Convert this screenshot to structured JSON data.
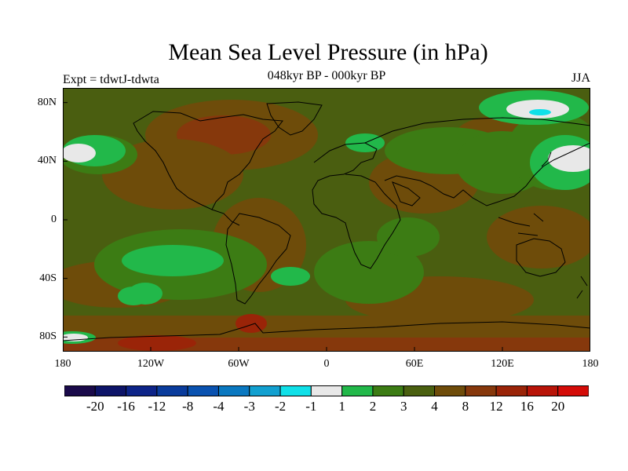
{
  "title": "Mean Sea Level Pressure (in hPa)",
  "subtitle": "048kyr BP - 000kyr BP",
  "experiment": "Expt = tdwtJ-tdwta",
  "season": "JJA",
  "map": {
    "projection": "cylindrical-equidistant",
    "lon_range": [
      -180,
      180
    ],
    "lat_range": [
      -90,
      90
    ],
    "lat_ticks": [
      {
        "value": 80,
        "label": "80N"
      },
      {
        "value": 40,
        "label": "40N"
      },
      {
        "value": 0,
        "label": "0"
      },
      {
        "value": -40,
        "label": "40S"
      },
      {
        "value": -80,
        "label": "80S"
      }
    ],
    "lon_ticks": [
      {
        "value": -180,
        "label": "180"
      },
      {
        "value": -120,
        "label": "120W"
      },
      {
        "value": -60,
        "label": "60W"
      },
      {
        "value": 0,
        "label": "0"
      },
      {
        "value": 60,
        "label": "60E"
      },
      {
        "value": 120,
        "label": "120E"
      },
      {
        "value": 180,
        "label": "180"
      }
    ],
    "background_color": "#4a5e10",
    "coastline_color": "#000000"
  },
  "colorbar": {
    "colors": [
      "#1a0a4a",
      "#0d1468",
      "#0d2488",
      "#0a3c9c",
      "#0a52b0",
      "#0a78c0",
      "#12a0d0",
      "#10e0e8",
      "#e8e8e8",
      "#22b84a",
      "#3c7c14",
      "#4a6010",
      "#6e4c0a",
      "#86380c",
      "#9a2408",
      "#b81408",
      "#d40c08"
    ],
    "labels": [
      "-20",
      "-16",
      "-12",
      "-8",
      "-4",
      "-3",
      "-2",
      "-1",
      "1",
      "2",
      "3",
      "4",
      "8",
      "12",
      "16",
      "20"
    ]
  }
}
